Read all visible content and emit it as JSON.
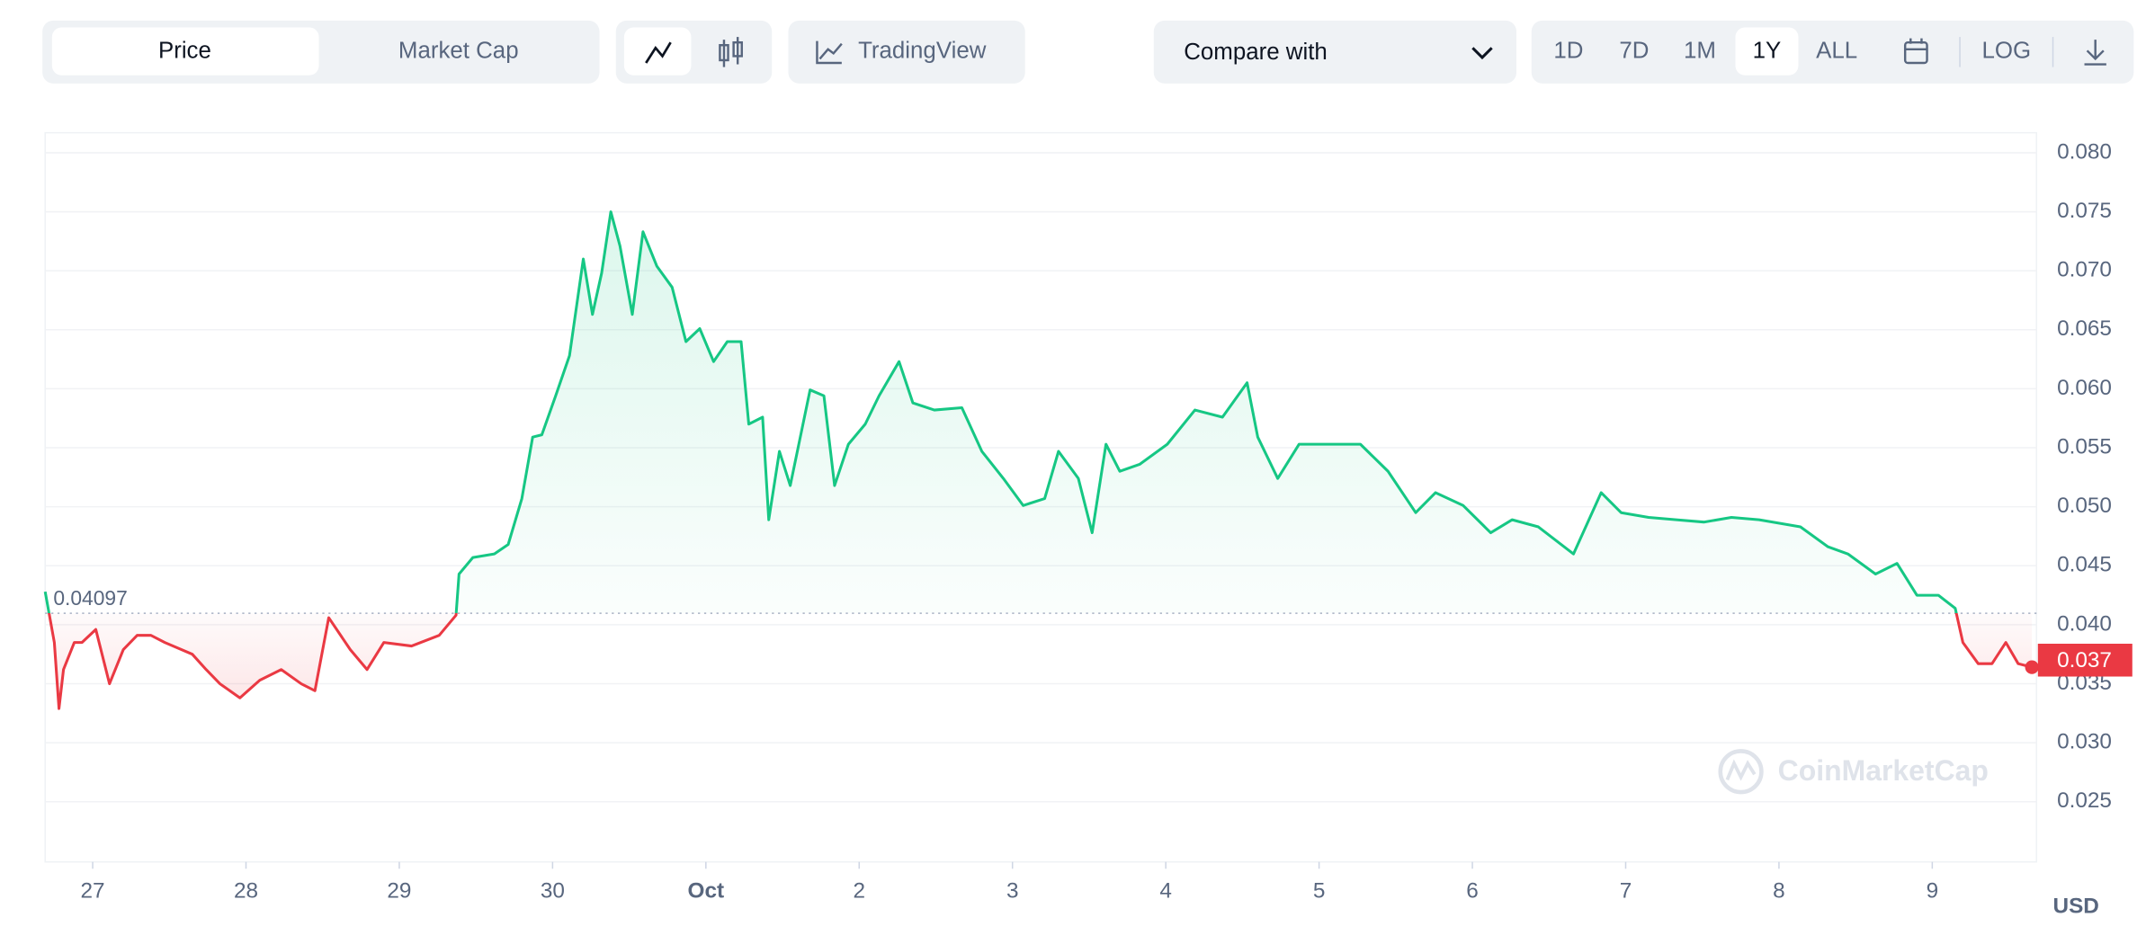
{
  "toolbar": {
    "view_tabs": [
      "Price",
      "Market Cap"
    ],
    "tradingview": "TradingView",
    "compare": "Compare with",
    "ranges": [
      "1D",
      "7D",
      "1M",
      "1Y",
      "ALL"
    ],
    "log": "LOG",
    "currency": "USD",
    "watermark": "CoinMarketCap"
  },
  "chart_data": {
    "type": "line",
    "colors": {
      "up": "#16c784",
      "down": "#ea3943"
    },
    "baseline": 0.04097,
    "current_price": 0.037,
    "xlim": [
      -0.31,
      12.68
    ],
    "xticks": [
      {
        "value": 0,
        "label": "27"
      },
      {
        "value": 1,
        "label": "28"
      },
      {
        "value": 2,
        "label": "29"
      },
      {
        "value": 3,
        "label": "30"
      },
      {
        "value": 4,
        "label": "Oct"
      },
      {
        "value": 5,
        "label": "2"
      },
      {
        "value": 6,
        "label": "3"
      },
      {
        "value": 7,
        "label": "4"
      },
      {
        "value": 8,
        "label": "5"
      },
      {
        "value": 9,
        "label": "6"
      },
      {
        "value": 10,
        "label": "7"
      },
      {
        "value": 11,
        "label": "8"
      },
      {
        "value": 12,
        "label": "9"
      }
    ],
    "ylim": [
      0.0199,
      0.0817
    ],
    "yticks": [
      0.025,
      {
        "value": 0.03,
        "label": "0.030"
      },
      0.035,
      {
        "value": 0.04,
        "label": "0.040"
      },
      0.045,
      {
        "value": 0.05,
        "label": "0.050"
      },
      0.055,
      {
        "value": 0.06,
        "label": "0.060"
      },
      0.065,
      {
        "value": 0.07,
        "label": "0.070"
      },
      0.075,
      {
        "value": 0.08,
        "label": "0.080"
      }
    ],
    "grid": true,
    "x": [
      -0.31,
      -0.25,
      -0.22,
      -0.19,
      -0.12,
      -0.07,
      0.02,
      0.11,
      0.2,
      0.29,
      0.38,
      0.47,
      0.65,
      0.74,
      0.83,
      0.96,
      1.09,
      1.23,
      1.36,
      1.45,
      1.54,
      1.68,
      1.79,
      1.9,
      2.08,
      2.26,
      2.37,
      2.39,
      2.48,
      2.62,
      2.71,
      2.8,
      2.87,
      2.93,
      3.02,
      3.11,
      3.2,
      3.26,
      3.32,
      3.38,
      3.44,
      3.52,
      3.59,
      3.68,
      3.78,
      3.87,
      3.96,
      4.05,
      4.14,
      4.23,
      4.28,
      4.37,
      4.41,
      4.48,
      4.55,
      4.68,
      4.77,
      4.84,
      4.93,
      5.04,
      5.13,
      5.26,
      5.35,
      5.49,
      5.67,
      5.8,
      5.94,
      6.07,
      6.21,
      6.3,
      6.43,
      6.52,
      6.61,
      6.7,
      6.83,
      7.01,
      7.19,
      7.37,
      7.53,
      7.6,
      7.73,
      7.87,
      8.04,
      8.27,
      8.45,
      8.63,
      8.76,
      8.94,
      9.12,
      9.26,
      9.43,
      9.66,
      9.84,
      9.97,
      10.15,
      10.33,
      10.51,
      10.69,
      10.87,
      11.14,
      11.32,
      11.45,
      11.63,
      11.77,
      11.9,
      12.04,
      12.15,
      12.2,
      12.3,
      12.39,
      12.48,
      12.56,
      12.65
    ],
    "values": [
      0.0428,
      0.0385,
      0.0329,
      0.0362,
      0.0385,
      0.0385,
      0.0396,
      0.035,
      0.0379,
      0.0391,
      0.0391,
      0.0385,
      0.0375,
      0.0362,
      0.035,
      0.0338,
      0.0353,
      0.0362,
      0.035,
      0.0344,
      0.0406,
      0.0379,
      0.0362,
      0.0385,
      0.0382,
      0.0391,
      0.0408,
      0.0443,
      0.0457,
      0.046,
      0.0468,
      0.0507,
      0.0559,
      0.0561,
      0.0594,
      0.0628,
      0.071,
      0.0663,
      0.0698,
      0.075,
      0.0721,
      0.0663,
      0.0733,
      0.0704,
      0.0686,
      0.064,
      0.0651,
      0.0623,
      0.064,
      0.064,
      0.057,
      0.0576,
      0.0489,
      0.0547,
      0.0518,
      0.0599,
      0.0594,
      0.0518,
      0.0553,
      0.057,
      0.0594,
      0.0623,
      0.0588,
      0.0582,
      0.0584,
      0.0547,
      0.0524,
      0.0501,
      0.0507,
      0.0547,
      0.0524,
      0.0478,
      0.0553,
      0.053,
      0.0536,
      0.0553,
      0.0582,
      0.0576,
      0.0605,
      0.0559,
      0.0524,
      0.0553,
      0.0553,
      0.0553,
      0.053,
      0.0495,
      0.0512,
      0.0501,
      0.0478,
      0.0489,
      0.0483,
      0.046,
      0.0512,
      0.0495,
      0.0491,
      0.0489,
      0.0487,
      0.0491,
      0.0489,
      0.0483,
      0.0466,
      0.046,
      0.0443,
      0.0452,
      0.0425,
      0.0425,
      0.0414,
      0.0385,
      0.0367,
      0.0367,
      0.0385,
      0.0367,
      0.0364
    ]
  }
}
